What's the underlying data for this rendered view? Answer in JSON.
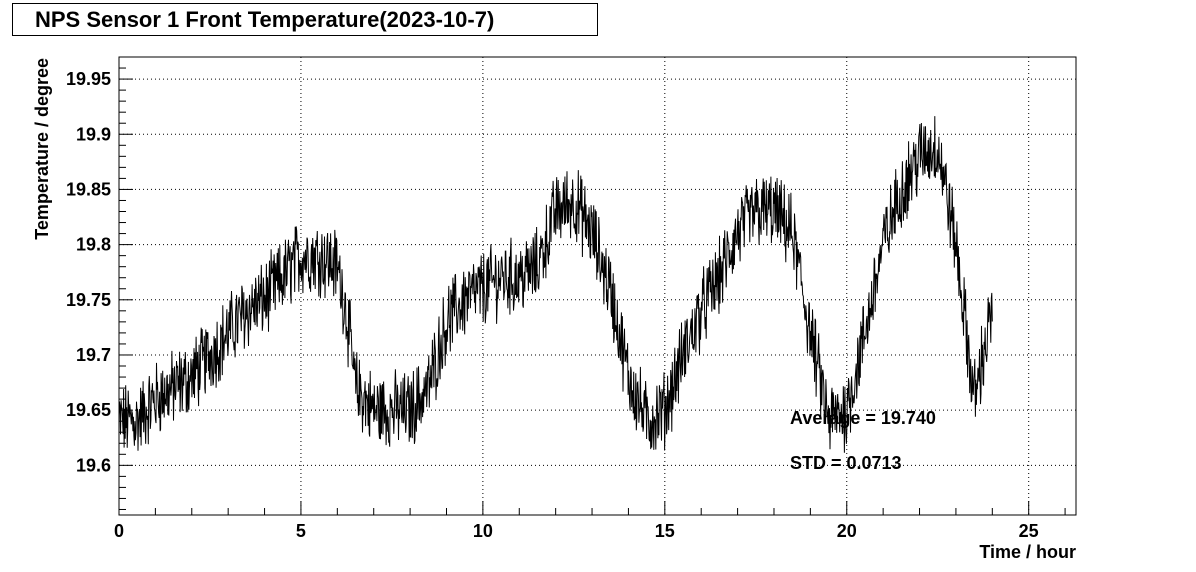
{
  "chart_data": {
    "type": "line",
    "title": "NPS Sensor 1 Front Temperature(2023-10-7)",
    "xlabel": "Time / hour",
    "ylabel": "Temperature / degree",
    "xlim": [
      0,
      26.3
    ],
    "ylim": [
      19.555,
      19.97
    ],
    "x_ticks": [
      0,
      5,
      10,
      15,
      20,
      25
    ],
    "x_tick_labels": [
      "0",
      "5",
      "10",
      "15",
      "20",
      "25"
    ],
    "y_ticks": [
      19.6,
      19.65,
      19.7,
      19.75,
      19.8,
      19.85,
      19.9,
      19.95
    ],
    "y_tick_labels": [
      "19.6",
      "19.65",
      "19.7",
      "19.75",
      "19.8",
      "19.85",
      "19.9",
      "19.95"
    ],
    "grid": true,
    "series": [
      {
        "x": [
          0,
          0.5,
          1,
          1.5,
          2,
          2.5,
          3,
          3.5,
          4,
          4.5,
          5,
          5.5,
          6,
          6.25,
          6.5,
          7,
          7.5,
          8,
          8.5,
          9,
          9.5,
          10,
          10.5,
          11,
          11.5,
          12,
          12.5,
          13,
          13.5,
          14,
          14.5,
          15,
          15.5,
          16,
          16.5,
          17,
          17.5,
          18,
          18.5,
          19,
          19.5,
          20,
          20.5,
          21,
          21.5,
          22,
          22.5,
          23,
          23.5,
          24
        ],
        "y": [
          19.64,
          19.64,
          19.66,
          19.67,
          19.68,
          19.7,
          19.72,
          19.74,
          19.75,
          19.77,
          19.79,
          19.79,
          19.78,
          19.74,
          19.67,
          19.65,
          19.65,
          19.65,
          19.67,
          19.73,
          19.75,
          19.76,
          19.77,
          19.77,
          19.78,
          19.83,
          19.84,
          19.81,
          19.76,
          19.68,
          19.64,
          19.65,
          19.7,
          19.74,
          19.77,
          19.81,
          19.83,
          19.83,
          19.81,
          19.72,
          19.64,
          19.65,
          19.72,
          19.8,
          19.85,
          19.88,
          19.89,
          19.8,
          19.66,
          19.74
        ]
      }
    ],
    "annotations": [
      "Average = 19.740",
      "STD = 0.0713"
    ]
  }
}
